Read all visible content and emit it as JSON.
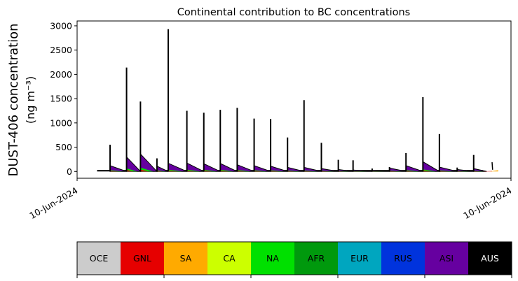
{
  "chart_data": {
    "type": "area",
    "title": "Continental contribution to BC concentrations",
    "ylabel_line1": "DUST-406 concentration",
    "ylabel_line2": "(ng m⁻³)",
    "x_tick_labels": [
      "10-Jun-2024",
      "10-Jun-2024"
    ],
    "y_ticks": [
      0,
      500,
      1000,
      1500,
      2000,
      2500,
      3000
    ],
    "ylim": [
      -140,
      3100
    ],
    "xlim": [
      0,
      1
    ],
    "grid": false,
    "series_order_bottom_to_top": [
      "OCE",
      "GNL",
      "SA",
      "CA",
      "NA",
      "AFR",
      "EUR",
      "RUS",
      "ASI",
      "AUS"
    ],
    "events": [
      {
        "x": 0.076,
        "peak": 550,
        "hump": 120
      },
      {
        "x": 0.114,
        "peak": 2140,
        "hump": 300
      },
      {
        "x": 0.146,
        "peak": 1440,
        "hump": 360
      },
      {
        "x": 0.184,
        "peak": 270,
        "hump": 110
      },
      {
        "x": 0.21,
        "peak": 2930,
        "hump": 170
      },
      {
        "x": 0.253,
        "peak": 1250,
        "hump": 175
      },
      {
        "x": 0.292,
        "peak": 1210,
        "hump": 160
      },
      {
        "x": 0.33,
        "peak": 1270,
        "hump": 165
      },
      {
        "x": 0.369,
        "peak": 1310,
        "hump": 140
      },
      {
        "x": 0.408,
        "peak": 1090,
        "hump": 120
      },
      {
        "x": 0.446,
        "peak": 1080,
        "hump": 110
      },
      {
        "x": 0.485,
        "peak": 700,
        "hump": 85
      },
      {
        "x": 0.523,
        "peak": 1470,
        "hump": 85
      },
      {
        "x": 0.563,
        "peak": 590,
        "hump": 60
      },
      {
        "x": 0.602,
        "peak": 240,
        "hump": 40
      },
      {
        "x": 0.636,
        "peak": 230,
        "hump": 30
      },
      {
        "x": 0.68,
        "peak": 60,
        "hump": 20
      },
      {
        "x": 0.72,
        "peak": 90,
        "hump": 70
      },
      {
        "x": 0.758,
        "peak": 380,
        "hump": 120
      },
      {
        "x": 0.797,
        "peak": 1530,
        "hump": 200
      },
      {
        "x": 0.835,
        "peak": 770,
        "hump": 90
      },
      {
        "x": 0.876,
        "peak": 80,
        "hump": 40
      },
      {
        "x": 0.914,
        "peak": 340,
        "hump": 60
      }
    ],
    "tail": {
      "x_start": 0.935,
      "x_end": 1.0,
      "value_end": 190,
      "series": "GNL"
    },
    "legend": {
      "placement": "bottom",
      "entries": [
        {
          "label": "OCE",
          "color": "#cccccc",
          "text_color": "#000000"
        },
        {
          "label": "GNL",
          "color": "#e60000",
          "text_color": "#000000"
        },
        {
          "label": "SA",
          "color": "#ffaa00",
          "text_color": "#000000"
        },
        {
          "label": "CA",
          "color": "#ccff00",
          "text_color": "#000000"
        },
        {
          "label": "NA",
          "color": "#00e000",
          "text_color": "#000000"
        },
        {
          "label": "AFR",
          "color": "#00990d",
          "text_color": "#000000"
        },
        {
          "label": "EUR",
          "color": "#00a6bf",
          "text_color": "#000000"
        },
        {
          "label": "RUS",
          "color": "#0033dd",
          "text_color": "#000000"
        },
        {
          "label": "ASI",
          "color": "#6600a0",
          "text_color": "#000000"
        },
        {
          "label": "AUS",
          "color": "#000000",
          "text_color": "#ffffff"
        }
      ]
    }
  }
}
